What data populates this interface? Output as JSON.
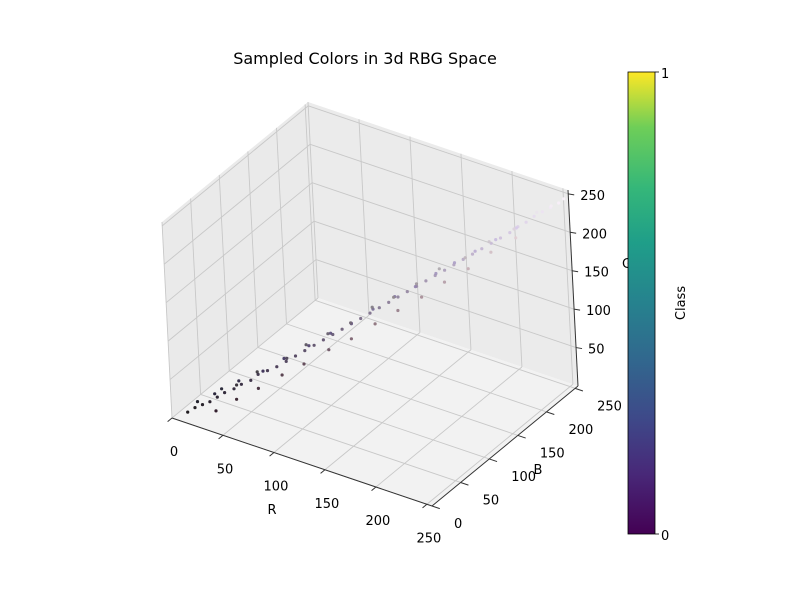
{
  "chart_data": {
    "type": "scatter",
    "projection": "3d",
    "title": "Sampled Colors in 3d RBG Space",
    "xlabel": "R",
    "ylabel": "B",
    "zlabel": "G",
    "xlim": [
      0,
      255
    ],
    "ylim": [
      0,
      255
    ],
    "zlim": [
      0,
      255
    ],
    "x_ticks": [
      "0",
      "50",
      "100",
      "150",
      "200",
      "250"
    ],
    "y_ticks": [
      "0",
      "50",
      "100",
      "150",
      "200",
      "250"
    ],
    "z_ticks": [
      "50",
      "100",
      "150",
      "200",
      "250"
    ],
    "grid": true,
    "point_color": "sampled RGB color of each point",
    "series": [
      {
        "points": [
          [
            10,
            6,
            10
          ],
          [
            14,
            10,
            16
          ],
          [
            18,
            12,
            22
          ],
          [
            22,
            14,
            28
          ],
          [
            26,
            18,
            34
          ],
          [
            30,
            22,
            40
          ],
          [
            36,
            26,
            46
          ],
          [
            40,
            30,
            52
          ],
          [
            46,
            34,
            58
          ],
          [
            50,
            40,
            64
          ],
          [
            56,
            44,
            70
          ],
          [
            62,
            48,
            76
          ],
          [
            68,
            54,
            82
          ],
          [
            74,
            60,
            88
          ],
          [
            80,
            66,
            94
          ],
          [
            86,
            72,
            100
          ],
          [
            92,
            78,
            106
          ],
          [
            98,
            84,
            112
          ],
          [
            104,
            90,
            118
          ],
          [
            110,
            96,
            124
          ],
          [
            116,
            102,
            130
          ],
          [
            122,
            108,
            136
          ],
          [
            128,
            114,
            142
          ],
          [
            134,
            120,
            148
          ],
          [
            140,
            126,
            154
          ],
          [
            146,
            132,
            160
          ],
          [
            152,
            138,
            166
          ],
          [
            158,
            144,
            172
          ],
          [
            164,
            150,
            178
          ],
          [
            170,
            156,
            184
          ],
          [
            176,
            162,
            190
          ],
          [
            182,
            168,
            196
          ],
          [
            188,
            174,
            202
          ],
          [
            194,
            180,
            208
          ],
          [
            200,
            186,
            214
          ],
          [
            206,
            192,
            220
          ],
          [
            212,
            198,
            226
          ],
          [
            218,
            206,
            230
          ],
          [
            224,
            212,
            234
          ],
          [
            230,
            220,
            238
          ],
          [
            236,
            226,
            242
          ],
          [
            242,
            232,
            246
          ],
          [
            248,
            238,
            250
          ],
          [
            252,
            244,
            252
          ],
          [
            20,
            16,
            40
          ],
          [
            34,
            28,
            58
          ],
          [
            48,
            36,
            76
          ],
          [
            60,
            48,
            92
          ],
          [
            76,
            62,
            108
          ],
          [
            90,
            76,
            122
          ],
          [
            104,
            88,
            134
          ],
          [
            118,
            104,
            148
          ],
          [
            132,
            118,
            162
          ],
          [
            146,
            130,
            174
          ],
          [
            160,
            146,
            186
          ],
          [
            172,
            158,
            198
          ],
          [
            186,
            172,
            210
          ],
          [
            200,
            186,
            222
          ],
          [
            214,
            200,
            234
          ],
          [
            30,
            8,
            24
          ],
          [
            44,
            22,
            36
          ],
          [
            58,
            34,
            50
          ],
          [
            74,
            50,
            64
          ],
          [
            88,
            62,
            78
          ],
          [
            104,
            78,
            94
          ],
          [
            120,
            92,
            106
          ],
          [
            136,
            110,
            120
          ],
          [
            150,
            124,
            136
          ],
          [
            166,
            140,
            150
          ],
          [
            180,
            156,
            166
          ],
          [
            196,
            172,
            180
          ],
          [
            210,
            190,
            196
          ],
          [
            226,
            206,
            212
          ],
          [
            12,
            12,
            24
          ],
          [
            26,
            24,
            42
          ],
          [
            40,
            34,
            44
          ],
          [
            54,
            50,
            56
          ],
          [
            70,
            60,
            80
          ],
          [
            84,
            78,
            90
          ],
          [
            98,
            90,
            104
          ],
          [
            114,
            104,
            116
          ],
          [
            128,
            122,
            130
          ],
          [
            144,
            136,
            140
          ],
          [
            158,
            150,
            156
          ],
          [
            172,
            166,
            172
          ],
          [
            190,
            180,
            186
          ],
          [
            204,
            196,
            204
          ],
          [
            220,
            210,
            220
          ],
          [
            234,
            228,
            236
          ],
          [
            244,
            236,
            244
          ]
        ]
      }
    ],
    "colorbar": {
      "label": "Class",
      "min_label": "0",
      "max_label": "1",
      "colormap": "viridis"
    }
  }
}
